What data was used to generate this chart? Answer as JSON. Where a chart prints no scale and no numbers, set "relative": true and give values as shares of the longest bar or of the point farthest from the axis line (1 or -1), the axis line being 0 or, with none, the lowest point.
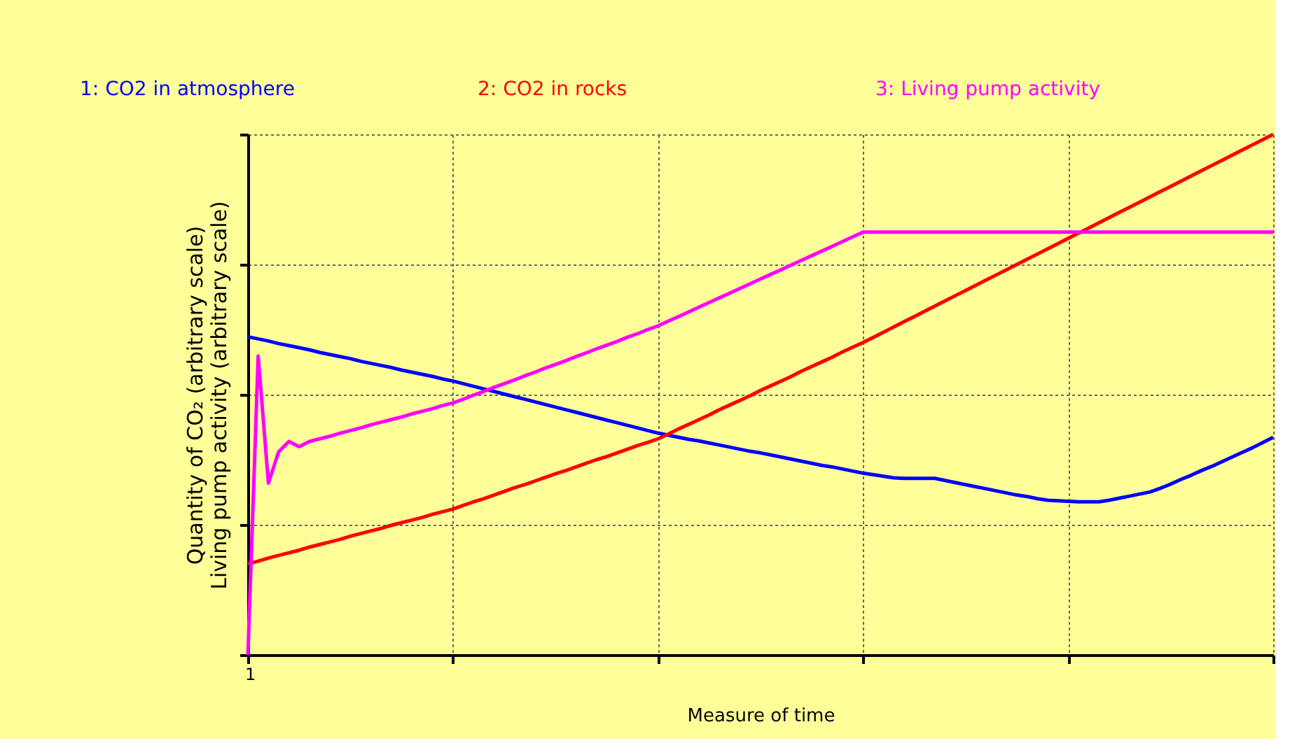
{
  "chart_data": {
    "type": "line",
    "relative": true,
    "xlabel": "Measure of time",
    "ylabel": "Quantity of CO₂ (arbitrary scale)\nLiving pump activity (arbitrary scale)",
    "legend": "top",
    "grid": true,
    "line_style": "solid",
    "marker": "none",
    "annotations": [
      "1"
    ],
    "categories": [
      null,
      null,
      null,
      null,
      null,
      null,
      null,
      null,
      null,
      null,
      null,
      null,
      null,
      null,
      null,
      null,
      null,
      null,
      null,
      null,
      null,
      null,
      null,
      null,
      null,
      null,
      null,
      null,
      null,
      null,
      null,
      null,
      null,
      null,
      null,
      null,
      null,
      null,
      null,
      null,
      null,
      null,
      null,
      null,
      null,
      null,
      null,
      null,
      null,
      null,
      null,
      null,
      null,
      null,
      null,
      null,
      null,
      null,
      null,
      null,
      null,
      null,
      null,
      null,
      null,
      null,
      null,
      null,
      null,
      null,
      null,
      null,
      null,
      null,
      null,
      null,
      null,
      null,
      null,
      null,
      null,
      null,
      null,
      null,
      null,
      null,
      null,
      null,
      null,
      null,
      null,
      null,
      null,
      null,
      null,
      null,
      null,
      null,
      null,
      null,
      null
    ],
    "series": [
      {
        "name": "1: CO2 in atmosphere",
        "color": "#0000ff",
        "values": [
          0.611,
          0.607,
          0.603,
          0.598,
          0.594,
          0.59,
          0.586,
          0.581,
          0.577,
          0.573,
          0.569,
          0.564,
          0.56,
          0.556,
          0.552,
          0.547,
          0.543,
          0.539,
          0.535,
          0.53,
          0.526,
          0.521,
          0.516,
          0.511,
          0.506,
          0.501,
          0.496,
          0.491,
          0.486,
          0.481,
          0.476,
          0.471,
          0.466,
          0.461,
          0.456,
          0.451,
          0.446,
          0.441,
          0.436,
          0.431,
          0.426,
          0.422,
          0.418,
          0.414,
          0.411,
          0.407,
          0.403,
          0.399,
          0.395,
          0.391,
          0.388,
          0.384,
          0.38,
          0.376,
          0.372,
          0.368,
          0.364,
          0.361,
          0.357,
          0.353,
          0.349,
          0.346,
          0.343,
          0.34,
          0.339,
          0.339,
          0.339,
          0.339,
          0.335,
          0.331,
          0.327,
          0.323,
          0.319,
          0.315,
          0.311,
          0.307,
          0.304,
          0.3,
          0.297,
          0.296,
          0.295,
          0.294,
          0.294,
          0.294,
          0.297,
          0.301,
          0.305,
          0.309,
          0.313,
          0.32,
          0.328,
          0.337,
          0.345,
          0.354,
          0.362,
          0.371,
          0.38,
          0.389,
          0.398,
          0.408,
          0.418
        ]
      },
      {
        "name": "2: CO2 in rocks",
        "color": "#ff0000",
        "values": [
          0.175,
          0.18,
          0.186,
          0.191,
          0.196,
          0.201,
          0.207,
          0.212,
          0.217,
          0.222,
          0.228,
          0.233,
          0.238,
          0.243,
          0.249,
          0.254,
          0.259,
          0.264,
          0.27,
          0.275,
          0.28,
          0.287,
          0.294,
          0.3,
          0.307,
          0.314,
          0.321,
          0.327,
          0.334,
          0.341,
          0.348,
          0.354,
          0.361,
          0.368,
          0.375,
          0.381,
          0.388,
          0.395,
          0.402,
          0.408,
          0.415,
          0.424,
          0.434,
          0.443,
          0.452,
          0.461,
          0.471,
          0.48,
          0.489,
          0.498,
          0.508,
          0.517,
          0.526,
          0.535,
          0.545,
          0.554,
          0.563,
          0.572,
          0.582,
          0.591,
          0.6,
          0.61,
          0.62,
          0.63,
          0.64,
          0.65,
          0.66,
          0.67,
          0.68,
          0.69,
          0.7,
          0.71,
          0.72,
          0.73,
          0.74,
          0.75,
          0.76,
          0.77,
          0.78,
          0.79,
          0.8,
          0.81,
          0.82,
          0.83,
          0.84,
          0.85,
          0.86,
          0.87,
          0.88,
          0.89,
          0.9,
          0.91,
          0.92,
          0.93,
          0.94,
          0.95,
          0.96,
          0.97,
          0.98,
          0.99,
          1.0
        ]
      },
      {
        "name": "3: Living pump activity",
        "color": "#ff00ff",
        "values": [
          0,
          0.574,
          0.33,
          0.39,
          0.41,
          0.4,
          0.41,
          0.415,
          0.42,
          0.426,
          0.431,
          0.436,
          0.442,
          0.447,
          0.452,
          0.457,
          0.463,
          0.468,
          0.473,
          0.479,
          0.484,
          0.491,
          0.499,
          0.506,
          0.514,
          0.521,
          0.528,
          0.536,
          0.543,
          0.551,
          0.558,
          0.565,
          0.573,
          0.58,
          0.588,
          0.595,
          0.602,
          0.61,
          0.617,
          0.625,
          0.632,
          0.641,
          0.65,
          0.659,
          0.668,
          0.677,
          0.686,
          0.695,
          0.704,
          0.713,
          0.722,
          0.731,
          0.74,
          0.749,
          0.758,
          0.767,
          0.776,
          0.785,
          0.794,
          0.803,
          0.812,
          0.812,
          0.812,
          0.812,
          0.812,
          0.812,
          0.812,
          0.812,
          0.812,
          0.812,
          0.812,
          0.812,
          0.812,
          0.812,
          0.812,
          0.812,
          0.812,
          0.812,
          0.812,
          0.812,
          0.812,
          0.812,
          0.812,
          0.812,
          0.812,
          0.812,
          0.812,
          0.812,
          0.812,
          0.812,
          0.812,
          0.812,
          0.812,
          0.812,
          0.812,
          0.812,
          0.812,
          0.812,
          0.812,
          0.812,
          0.812
        ]
      }
    ]
  }
}
